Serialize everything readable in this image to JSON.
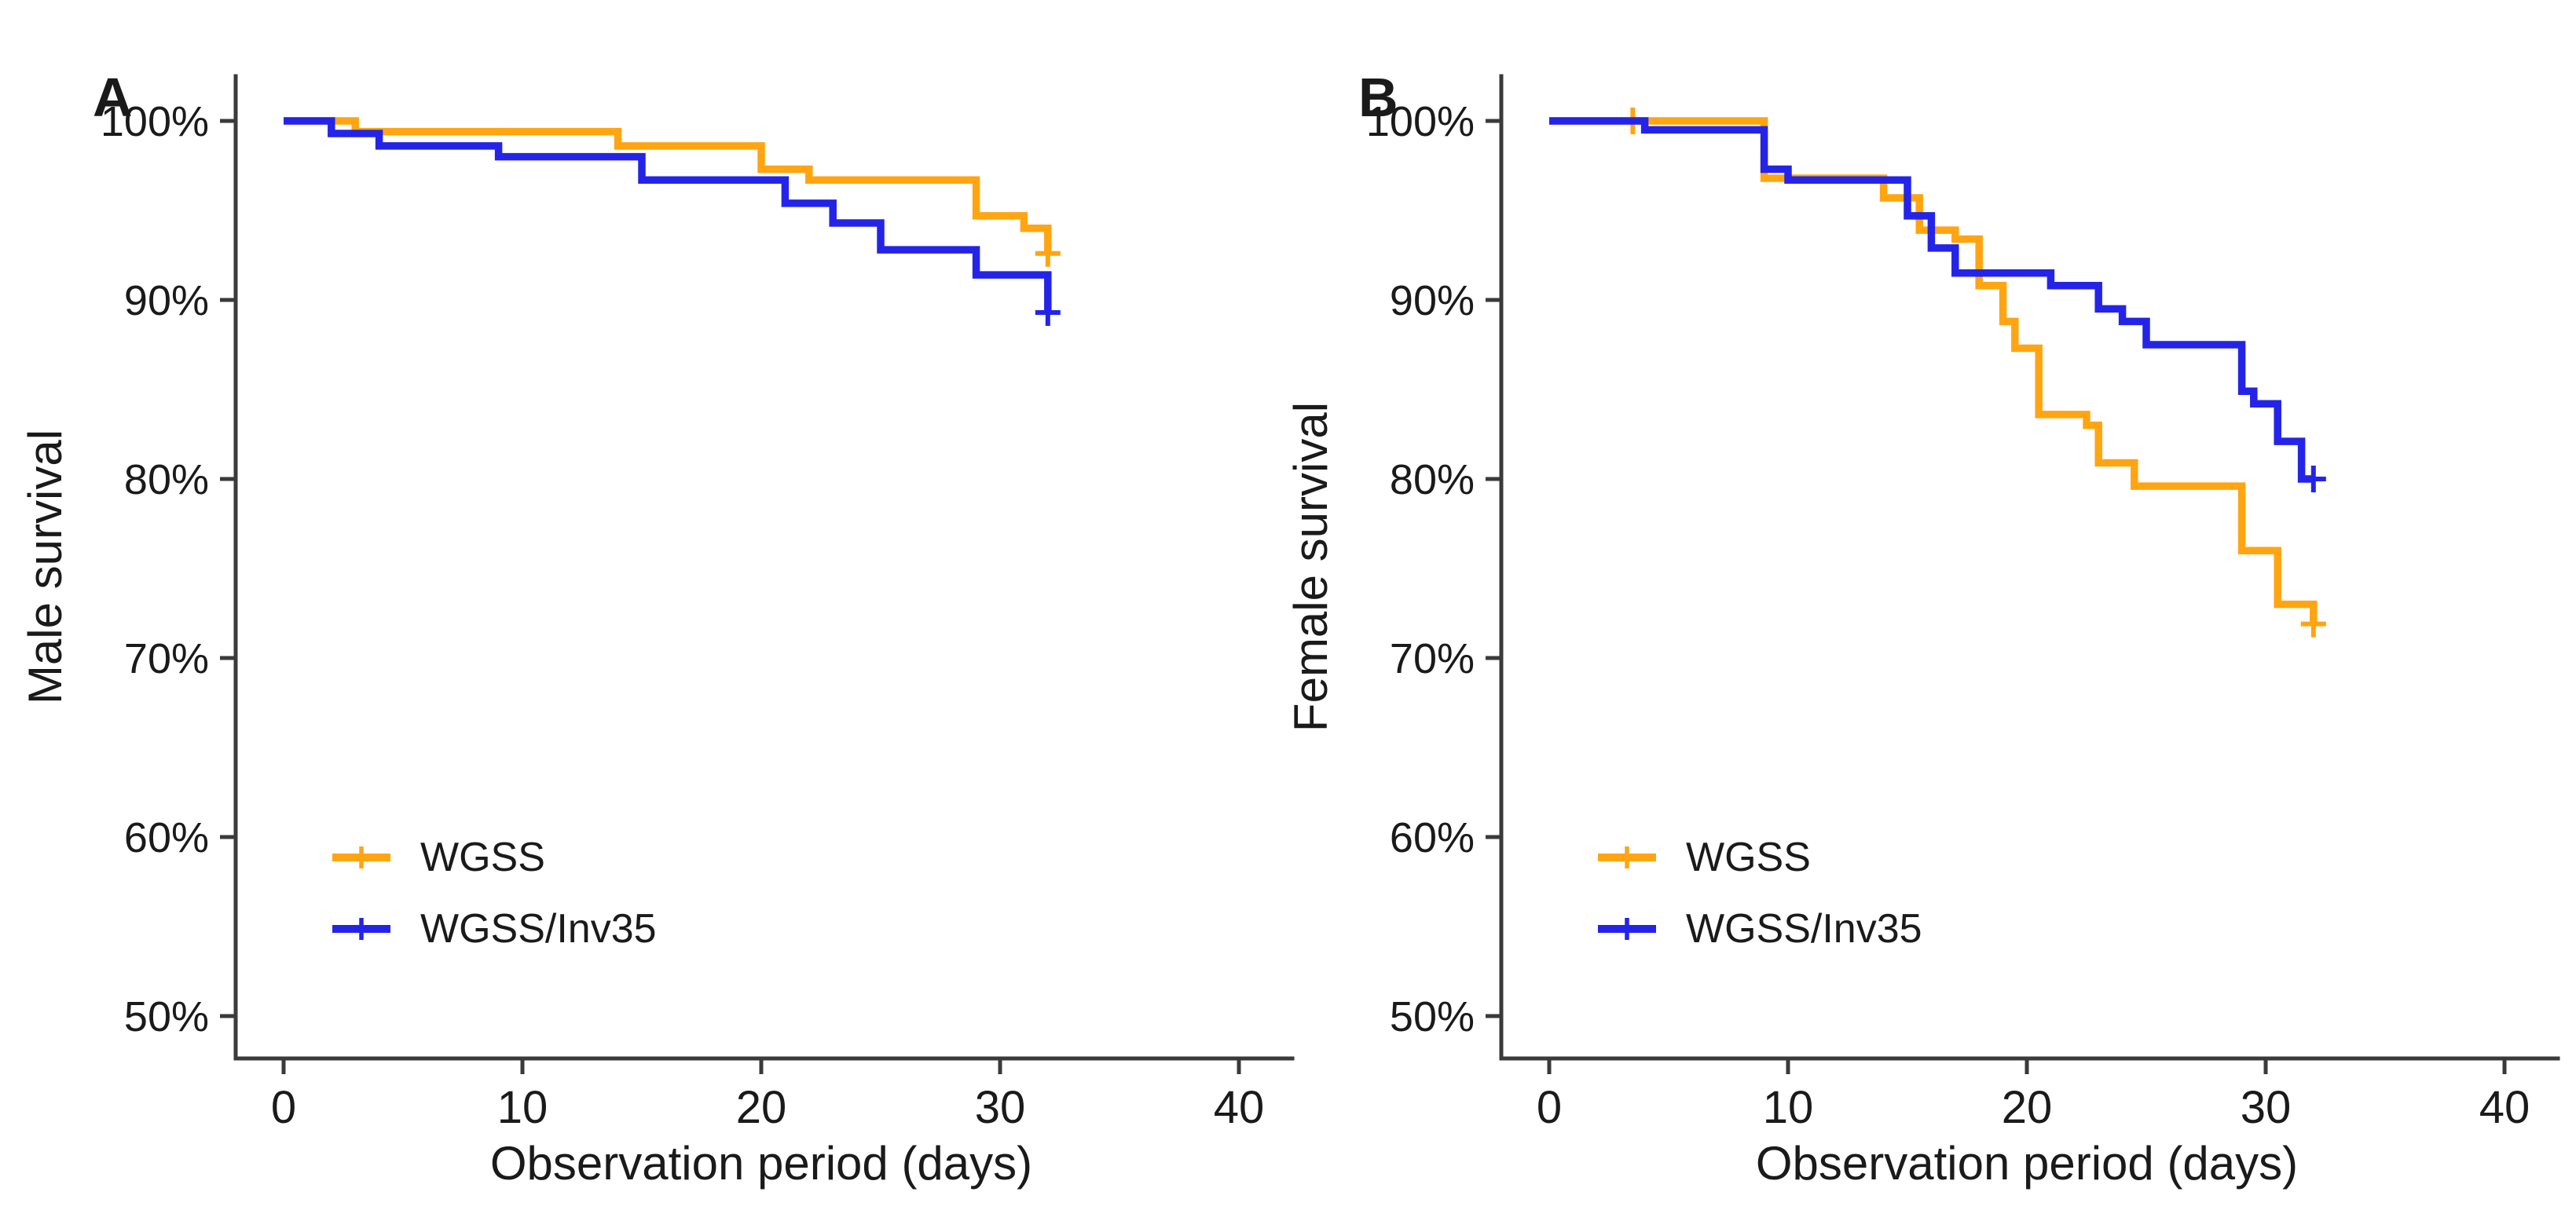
{
  "figure": {
    "background": "#FFFFFF",
    "text_color": "#1A1A1A",
    "axis_color": "#3A3A3A",
    "accent_orange": "#FFA512",
    "accent_blue": "#2424E8"
  },
  "chart_data": [
    {
      "type": "line",
      "subtype": "kaplan-meier-step",
      "panel_label": "A",
      "xlabel": "Observation period (days)",
      "ylabel": "Male survival",
      "x_ticks": [
        0,
        10,
        20,
        30,
        40
      ],
      "y_tick_labels": [
        "100%",
        "90%",
        "80%",
        "70%",
        "60%",
        "50%"
      ],
      "y_tick_values": [
        100,
        90,
        80,
        70,
        60,
        50
      ],
      "xlim": [
        -2,
        42
      ],
      "ylim": [
        47.5,
        102.5
      ],
      "grid": false,
      "legend_position": "inside-bottom-left",
      "end_day": 32,
      "series": [
        {
          "name": "WGSS",
          "color": "#FFA512",
          "steps": [
            [
              0,
              100
            ],
            [
              3,
              99.4
            ],
            [
              14,
              98.6
            ],
            [
              20,
              97.3
            ],
            [
              22,
              96.7
            ],
            [
              29,
              94.7
            ],
            [
              31,
              94.0
            ],
            [
              32,
              92.6
            ]
          ],
          "censors": [
            [
              32,
              92.6
            ]
          ]
        },
        {
          "name": "WGSS/Inv35",
          "color": "#2424E8",
          "steps": [
            [
              0,
              100
            ],
            [
              2,
              99.3
            ],
            [
              4,
              98.6
            ],
            [
              9,
              98.0
            ],
            [
              15,
              96.7
            ],
            [
              21,
              95.4
            ],
            [
              23,
              94.3
            ],
            [
              25,
              92.8
            ],
            [
              29,
              91.4
            ],
            [
              32,
              89.3
            ]
          ],
          "censors": [
            [
              32,
              89.3
            ]
          ]
        }
      ]
    },
    {
      "type": "line",
      "subtype": "kaplan-meier-step",
      "panel_label": "B",
      "xlabel": "Observation period (days)",
      "ylabel": "Female survival",
      "x_ticks": [
        0,
        10,
        20,
        30,
        40
      ],
      "y_tick_labels": [
        "100%",
        "90%",
        "80%",
        "70%",
        "60%",
        "50%"
      ],
      "y_tick_values": [
        100,
        90,
        80,
        70,
        60,
        50
      ],
      "xlim": [
        -2,
        42
      ],
      "ylim": [
        47.5,
        102.5
      ],
      "grid": false,
      "legend_position": "inside-bottom-left",
      "end_day": 32,
      "series": [
        {
          "name": "WGSS",
          "color": "#FFA512",
          "steps": [
            [
              0,
              100
            ],
            [
              9,
              96.8
            ],
            [
              14,
              95.7
            ],
            [
              15.5,
              93.9
            ],
            [
              17,
              93.4
            ],
            [
              18,
              90.8
            ],
            [
              19,
              88.8
            ],
            [
              19.5,
              87.3
            ],
            [
              20.5,
              83.6
            ],
            [
              22.5,
              83.0
            ],
            [
              23,
              80.9
            ],
            [
              24.5,
              79.6
            ],
            [
              29,
              76.0
            ],
            [
              30.5,
              73.0
            ],
            [
              32,
              71.9
            ]
          ],
          "censors": [
            [
              3.5,
              100
            ],
            [
              32,
              71.9
            ]
          ]
        },
        {
          "name": "WGSS/Inv35",
          "color": "#2424E8",
          "steps": [
            [
              0,
              100
            ],
            [
              4,
              99.5
            ],
            [
              9,
              97.3
            ],
            [
              10,
              96.7
            ],
            [
              15,
              94.7
            ],
            [
              16,
              92.9
            ],
            [
              17,
              91.5
            ],
            [
              21,
              90.8
            ],
            [
              23,
              89.5
            ],
            [
              24,
              88.8
            ],
            [
              25,
              87.5
            ],
            [
              29,
              84.9
            ],
            [
              29.5,
              84.2
            ],
            [
              30.5,
              82.1
            ],
            [
              31.5,
              80.0
            ]
          ],
          "censors": [
            [
              32,
              80.0
            ]
          ]
        }
      ]
    }
  ]
}
